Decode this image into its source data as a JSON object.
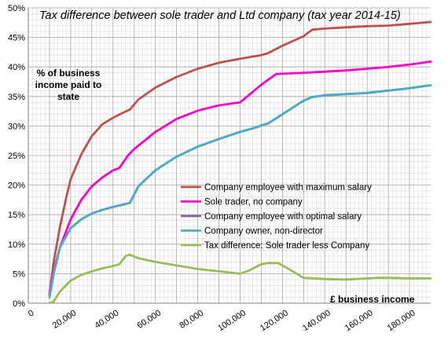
{
  "chart_data": {
    "type": "line",
    "title": "Tax difference between sole trader and Ltd company (tax year 2014-15)",
    "ylabel": "% of business income paid to state",
    "xlabel": "£ business income",
    "xlim": [
      0,
      190000
    ],
    "ylim": [
      0,
      50
    ],
    "x_ticks": [
      "0",
      "20,000",
      "40,000",
      "60,000",
      "80,000",
      "100,000",
      "120,000",
      "140,000",
      "160,000",
      "180,000"
    ],
    "y_ticks": [
      "0%",
      "5%",
      "10%",
      "15%",
      "20%",
      "25%",
      "30%",
      "35%",
      "40%",
      "45%",
      "50%"
    ],
    "grid": true,
    "legend_position": "center-right",
    "series": [
      {
        "name": "Company employee with maximum salary",
        "color": "#c0504d",
        "points": [
          [
            10000,
            1.5
          ],
          [
            12000,
            7
          ],
          [
            15000,
            13
          ],
          [
            18000,
            18
          ],
          [
            20000,
            21
          ],
          [
            25000,
            25.2
          ],
          [
            30000,
            28.3
          ],
          [
            35000,
            30.3
          ],
          [
            40000,
            31.4
          ],
          [
            45000,
            32.3
          ],
          [
            48000,
            32.8
          ],
          [
            52000,
            34.5
          ],
          [
            60000,
            36.5
          ],
          [
            70000,
            38.3
          ],
          [
            80000,
            39.7
          ],
          [
            90000,
            40.7
          ],
          [
            100000,
            41.4
          ],
          [
            110000,
            42
          ],
          [
            113000,
            42.3
          ],
          [
            120000,
            43.6
          ],
          [
            130000,
            45.2
          ],
          [
            134000,
            46.3
          ],
          [
            140000,
            46.5
          ],
          [
            150000,
            46.7
          ],
          [
            160000,
            46.9
          ],
          [
            170000,
            47
          ],
          [
            180000,
            47.3
          ],
          [
            190000,
            47.6
          ]
        ]
      },
      {
        "name": "Sole trader, no company",
        "color": "#ff00cc",
        "points": [
          [
            10000,
            1.5
          ],
          [
            12000,
            5.5
          ],
          [
            15000,
            9.5
          ],
          [
            20000,
            14.2
          ],
          [
            25000,
            17.5
          ],
          [
            30000,
            19.8
          ],
          [
            35000,
            21.3
          ],
          [
            40000,
            22.5
          ],
          [
            43000,
            22.9
          ],
          [
            47000,
            25
          ],
          [
            50000,
            26.1
          ],
          [
            60000,
            29
          ],
          [
            70000,
            31.2
          ],
          [
            80000,
            32.6
          ],
          [
            90000,
            33.5
          ],
          [
            100000,
            34
          ],
          [
            110000,
            37
          ],
          [
            117000,
            38.8
          ],
          [
            130000,
            39
          ],
          [
            140000,
            39.2
          ],
          [
            150000,
            39.4
          ],
          [
            160000,
            39.7
          ],
          [
            170000,
            40
          ],
          [
            180000,
            40.4
          ],
          [
            190000,
            40.9
          ]
        ]
      },
      {
        "name": "Company employee with optimal salary",
        "color": "#8064a2",
        "points": [
          [
            10000,
            1
          ],
          [
            12000,
            5
          ],
          [
            15000,
            9.5
          ],
          [
            20000,
            12.7
          ],
          [
            25000,
            14.2
          ],
          [
            30000,
            15.2
          ],
          [
            35000,
            15.8
          ],
          [
            40000,
            16.3
          ],
          [
            45000,
            16.7
          ],
          [
            48000,
            17
          ],
          [
            52000,
            19.8
          ],
          [
            60000,
            22.5
          ],
          [
            70000,
            24.8
          ],
          [
            80000,
            26.5
          ],
          [
            90000,
            27.8
          ],
          [
            100000,
            29
          ],
          [
            108000,
            29.8
          ],
          [
            110000,
            30.1
          ],
          [
            113000,
            30.4
          ],
          [
            120000,
            32
          ],
          [
            130000,
            34.3
          ],
          [
            134000,
            34.9
          ],
          [
            140000,
            35.2
          ],
          [
            150000,
            35.4
          ],
          [
            160000,
            35.6
          ],
          [
            170000,
            36
          ],
          [
            180000,
            36.4
          ],
          [
            190000,
            36.9
          ]
        ]
      },
      {
        "name": "Company owner, non-director",
        "color": "#4bacc6",
        "points": [
          [
            10000,
            1
          ],
          [
            12000,
            5
          ],
          [
            15000,
            9.5
          ],
          [
            20000,
            12.7
          ],
          [
            25000,
            14.2
          ],
          [
            30000,
            15.2
          ],
          [
            35000,
            15.8
          ],
          [
            40000,
            16.3
          ],
          [
            45000,
            16.7
          ],
          [
            48000,
            17
          ],
          [
            52000,
            19.8
          ],
          [
            60000,
            22.5
          ],
          [
            70000,
            24.8
          ],
          [
            80000,
            26.5
          ],
          [
            90000,
            27.8
          ],
          [
            100000,
            29
          ],
          [
            108000,
            29.8
          ],
          [
            110000,
            30.1
          ],
          [
            113000,
            30.4
          ],
          [
            120000,
            32
          ],
          [
            130000,
            34.3
          ],
          [
            134000,
            34.9
          ],
          [
            140000,
            35.2
          ],
          [
            150000,
            35.4
          ],
          [
            160000,
            35.6
          ],
          [
            170000,
            36
          ],
          [
            180000,
            36.4
          ],
          [
            190000,
            36.9
          ]
        ]
      },
      {
        "name": "Tax difference: Sole trader less Company",
        "color": "#9bbb59",
        "points": [
          [
            10000,
            0
          ],
          [
            12000,
            0.3
          ],
          [
            15000,
            2
          ],
          [
            20000,
            3.8
          ],
          [
            25000,
            4.8
          ],
          [
            30000,
            5.4
          ],
          [
            35000,
            5.9
          ],
          [
            40000,
            6.3
          ],
          [
            43000,
            6.6
          ],
          [
            46000,
            8
          ],
          [
            48000,
            8.2
          ],
          [
            52000,
            7.6
          ],
          [
            60000,
            7
          ],
          [
            70000,
            6.4
          ],
          [
            80000,
            5.8
          ],
          [
            90000,
            5.4
          ],
          [
            100000,
            5
          ],
          [
            104000,
            5.5
          ],
          [
            110000,
            6.6
          ],
          [
            113000,
            6.8
          ],
          [
            118000,
            6.8
          ],
          [
            121000,
            6.2
          ],
          [
            130000,
            4.3
          ],
          [
            140000,
            4.1
          ],
          [
            150000,
            4
          ],
          [
            160000,
            4.2
          ],
          [
            165000,
            4.3
          ],
          [
            170000,
            4.3
          ],
          [
            180000,
            4.2
          ],
          [
            190000,
            4.2
          ]
        ]
      }
    ]
  }
}
